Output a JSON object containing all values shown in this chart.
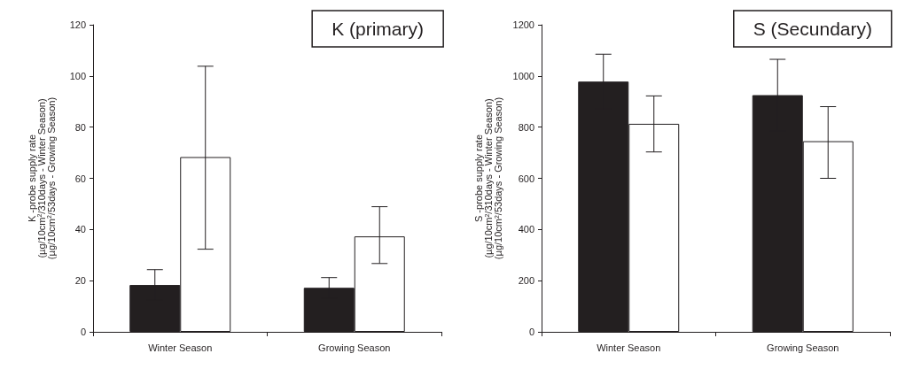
{
  "chart_data": [
    {
      "type": "bar",
      "title": "K (primary)",
      "ylabel": "K -probe supply rate\n(µg/10cm$^{2}$/310days - Winter Season)\n(µg/10cm$^{2}$/53days - Growing Season)",
      "categories": [
        "Winter Season",
        "Growing Season"
      ],
      "ylim": [
        0,
        120
      ],
      "yticks": [
        0,
        20,
        40,
        60,
        80,
        100,
        120
      ],
      "series": [
        {
          "color": "#231f20",
          "values": [
            18.3,
            17.2
          ],
          "errors": [
            6,
            4
          ]
        },
        {
          "color": "#ffffff",
          "values": [
            68.3,
            37.3
          ],
          "errors": [
            [
              32.3,
              103.8
            ],
            [
              26.7,
              48.9
            ]
          ]
        }
      ]
    },
    {
      "type": "bar",
      "title": "S (Secundary)",
      "ylabel": "S -probe supply rate\n(µg/10cm$^{2}$/310days - Winter Season)\n(µg/10cm$^{2}$/53days - Growing Season)",
      "categories": [
        "Winter Season",
        "Growing Season"
      ],
      "ylim": [
        0,
        1200
      ],
      "yticks": [
        0,
        200,
        400,
        600,
        800,
        1000,
        1200
      ],
      "series": [
        {
          "color": "#231f20",
          "values": [
            978,
            925
          ],
          "errors": [
            107,
            140
          ]
        },
        {
          "color": "#ffffff",
          "values": [
            813,
            745
          ],
          "errors": [
            [
              703,
              922
            ],
            [
              600,
              880
            ]
          ]
        }
      ]
    }
  ]
}
